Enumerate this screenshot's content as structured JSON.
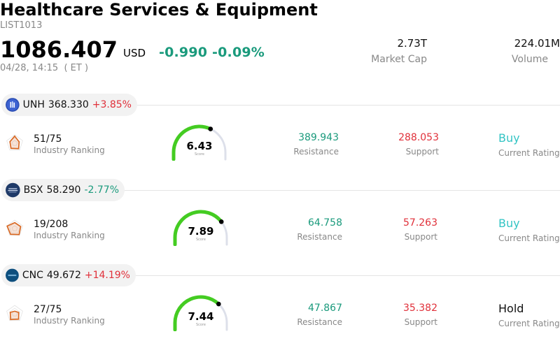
{
  "header": {
    "title": "Healthcare Services & Equipment",
    "code": "LIST1013",
    "price": "1086.407",
    "currency": "USD",
    "change": "-0.990",
    "change_pct": "-0.09%",
    "timestamp": "04/28, 14:15  ( ET )"
  },
  "stats": {
    "market_cap_value": "2.73T",
    "market_cap_label": "Market Cap",
    "volume_value": "224.01M",
    "volume_label": "Volume"
  },
  "colors": {
    "positive_change": "#e0303a",
    "negative_change": "#1a9a7c",
    "gauge_fill": "#44cc22",
    "gauge_track": "#dde0ea",
    "buy_rating": "#33c4c4",
    "radar_stroke": "#d9661f"
  },
  "stocks": [
    {
      "ticker": "UNH",
      "price": "368.330",
      "change_pct": "+3.85%",
      "logo_icon": "unh-logo-icon",
      "ranking": "51/75",
      "ranking_label": "Industry Ranking",
      "score": "6.43",
      "score_fraction": 0.64,
      "score_label": "Score",
      "resistance": "389.943",
      "resistance_label": "Resistance",
      "support": "288.053",
      "support_label": "Support",
      "rating": "Buy",
      "rating_label": "Current Rating"
    },
    {
      "ticker": "BSX",
      "price": "58.290",
      "change_pct": "-2.77%",
      "logo_icon": "bsx-logo-icon",
      "ranking": "19/208",
      "ranking_label": "Industry Ranking",
      "score": "7.89",
      "score_fraction": 0.79,
      "score_label": "Score",
      "resistance": "64.758",
      "resistance_label": "Resistance",
      "support": "57.263",
      "support_label": "Support",
      "rating": "Buy",
      "rating_label": "Current Rating"
    },
    {
      "ticker": "CNC",
      "price": "49.672",
      "change_pct": "+14.19%",
      "logo_icon": "cnc-logo-icon",
      "ranking": "27/75",
      "ranking_label": "Industry Ranking",
      "score": "7.44",
      "score_fraction": 0.74,
      "score_label": "Score",
      "resistance": "47.867",
      "resistance_label": "Resistance",
      "support": "35.382",
      "support_label": "Support",
      "rating": "Hold",
      "rating_label": "Current Rating"
    }
  ]
}
